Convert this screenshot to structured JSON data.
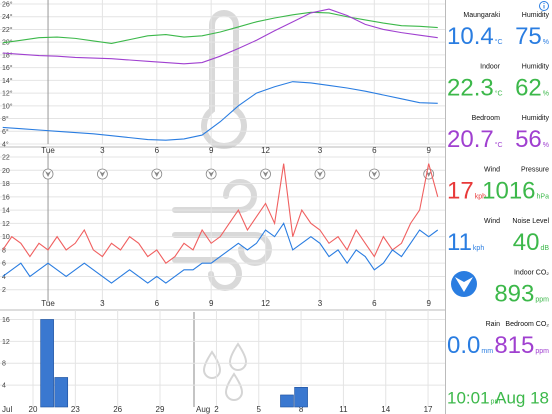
{
  "chart_data": [
    {
      "type": "line",
      "x": [
        -2.5,
        -1.5,
        -0.5,
        0.5,
        1.5,
        2.5,
        3.5,
        4.5,
        5.5,
        6.5,
        7.5,
        8.5,
        9.5,
        10.5,
        11.5,
        12.5,
        13.5,
        14.5,
        15.5,
        16.5,
        17.5,
        18.5,
        19.5,
        20.5,
        21.5
      ],
      "series": [
        {
          "color": "#2a7de1",
          "values": [
            6.6,
            6.4,
            6.2,
            6.0,
            5.8,
            5.6,
            5.3,
            5.0,
            4.7,
            4.6,
            4.8,
            5.4,
            7.5,
            10.0,
            12.0,
            13.0,
            13.8,
            13.6,
            13.2,
            12.8,
            12.3,
            11.7,
            11.1,
            10.5,
            10.4
          ]
        },
        {
          "color": "#3cb84a",
          "values": [
            19.9,
            20.3,
            20.7,
            20.8,
            20.6,
            20.2,
            19.8,
            20.4,
            21.0,
            21.2,
            20.8,
            21.0,
            21.6,
            22.4,
            23.2,
            23.8,
            24.3,
            24.7,
            24.6,
            24.0,
            23.5,
            23.0,
            22.6,
            22.5,
            22.3
          ]
        },
        {
          "color": "#a040d0",
          "values": [
            18.3,
            18.1,
            17.9,
            17.8,
            17.6,
            17.5,
            17.4,
            17.2,
            17.0,
            16.8,
            16.6,
            16.8,
            17.8,
            19.0,
            20.3,
            21.8,
            23.2,
            24.6,
            25.2,
            24.2,
            22.8,
            22.0,
            21.5,
            21.1,
            20.7
          ]
        }
      ],
      "xlim": [
        -2.65,
        21.9
      ],
      "xticks": [
        {
          "value": 0,
          "label": "Tue"
        },
        3,
        6,
        9,
        12,
        {
          "value": 15,
          "label": "3"
        },
        {
          "value": 18,
          "label": "6"
        },
        {
          "value": 21,
          "label": "9"
        }
      ],
      "ylim": [
        4,
        26
      ],
      "yticks": [
        {
          "value": 4,
          "label": "4°"
        },
        {
          "value": 6,
          "label": "6°"
        },
        {
          "value": 8,
          "label": "8°"
        },
        {
          "value": 10,
          "label": "10°"
        },
        {
          "value": 12,
          "label": "12°"
        },
        {
          "value": 14,
          "label": "14°"
        },
        {
          "value": 16,
          "label": "16°"
        },
        {
          "value": 18,
          "label": "18°"
        },
        {
          "value": 20,
          "label": "20°"
        },
        {
          "value": 22,
          "label": "22°"
        },
        {
          "value": 24,
          "label": "24°"
        },
        {
          "value": 26,
          "label": "26°"
        }
      ],
      "grid": true
    },
    {
      "type": "line",
      "x": [
        -2.5,
        -2,
        -1.5,
        -1,
        -0.5,
        0,
        0.5,
        1,
        1.5,
        2,
        2.5,
        3,
        3.5,
        4,
        4.5,
        5,
        5.5,
        6,
        6.5,
        7,
        7.5,
        8,
        8.5,
        9,
        9.5,
        10,
        10.5,
        11,
        11.5,
        12,
        12.5,
        13,
        13.5,
        14,
        14.5,
        15,
        15.5,
        16,
        16.5,
        17,
        17.5,
        18,
        18.5,
        19,
        19.5,
        20,
        20.5,
        21,
        21.5
      ],
      "series": [
        {
          "color": "#f06060",
          "values": [
            8,
            10,
            9,
            7,
            9,
            8,
            10,
            8,
            9,
            11,
            8,
            7,
            9,
            8,
            10,
            9,
            7,
            8,
            6,
            7,
            9,
            8,
            11,
            9,
            10,
            12,
            14,
            11,
            13,
            15,
            12,
            21,
            10,
            14,
            12,
            11,
            9,
            10,
            8,
            11,
            9,
            7,
            10,
            8,
            9,
            12,
            14,
            21,
            16
          ]
        },
        {
          "color": "#2a7de1",
          "values": [
            4,
            5,
            6,
            4,
            5,
            6,
            5,
            4,
            5,
            6,
            5,
            4,
            3,
            4,
            5,
            4,
            3,
            4,
            3,
            4,
            5,
            5,
            6,
            6,
            7,
            8,
            9,
            8,
            9,
            11,
            10,
            12,
            8,
            9,
            10,
            9,
            7,
            8,
            6,
            8,
            7,
            5,
            6,
            8,
            7,
            9,
            11,
            10,
            11
          ]
        }
      ],
      "xlim": [
        -2.65,
        21.9
      ],
      "xticks": [
        {
          "value": 0,
          "label": "Tue"
        },
        3,
        6,
        9,
        12,
        {
          "value": 15,
          "label": "3"
        },
        {
          "value": 18,
          "label": "6"
        },
        {
          "value": 21,
          "label": "9"
        }
      ],
      "ylim": [
        0,
        22
      ],
      "yticks": [
        2,
        4,
        6,
        8,
        10,
        12,
        14,
        16,
        18,
        20,
        22
      ],
      "grid": true
    },
    {
      "type": "bar",
      "x": [
        21,
        22,
        38,
        39
      ],
      "values": [
        16,
        5.4,
        2.2,
        3.6
      ],
      "color": "#3a78d0",
      "xlim": [
        17.66,
        49.2
      ],
      "xticks": [
        20,
        23,
        26,
        29,
        {
          "value": 33,
          "label": "2"
        },
        {
          "value": 36,
          "label": "5"
        },
        {
          "value": 39,
          "label": "8"
        },
        {
          "value": 42,
          "label": "11"
        },
        {
          "value": 45,
          "label": "14"
        },
        {
          "value": 48,
          "label": "17"
        }
      ],
      "month_labels": [
        "Jul",
        "Aug"
      ],
      "ylim": [
        0,
        17
      ],
      "yticks": [
        4,
        8,
        12,
        16
      ],
      "grid": true
    }
  ],
  "panel": {
    "left": [
      {
        "label": "Maungaraki",
        "value": "10.4",
        "unit": "°C",
        "color": "#2a7de1"
      },
      {
        "label": "Indoor",
        "value": "22.3",
        "unit": "°C",
        "color": "#3cb84a"
      },
      {
        "label": "Bedroom",
        "value": "20.7",
        "unit": "°C",
        "color": "#a040d0"
      },
      {
        "label": "Wind",
        "value": "17",
        "unit": "kph",
        "color": "#e83a3a"
      },
      {
        "label": "Wind",
        "value": "11",
        "unit": "kph",
        "color": "#2a7de1"
      },
      {
        "label": "Rain",
        "value": "0.0",
        "unit": "mm",
        "color": "#2a7de1"
      },
      {
        "value": "10:01",
        "unit": "pm",
        "color": "#3cb84a"
      }
    ],
    "right": [
      {
        "label": "Humidity",
        "value": "75",
        "unit": "%",
        "color": "#2a7de1"
      },
      {
        "label": "Humidity",
        "value": "62",
        "unit": "%",
        "color": "#3cb84a"
      },
      {
        "label": "Humidity",
        "value": "56",
        "unit": "%",
        "color": "#a040d0"
      },
      {
        "label": "Pressure",
        "value": "1016",
        "unit": "hPa",
        "color": "#3cb84a"
      },
      {
        "label": "Noise Level",
        "value": "40",
        "unit": "dB",
        "color": "#3cb84a"
      },
      {
        "label": "Indoor CO₂",
        "value": "893",
        "unit": "ppm",
        "color": "#3cb84a"
      },
      {
        "label": "Bedroom CO₂",
        "value": "815",
        "unit": "ppm",
        "color": "#a040d0"
      },
      {
        "value": "Aug 18",
        "color": "#3cb84a"
      }
    ]
  }
}
